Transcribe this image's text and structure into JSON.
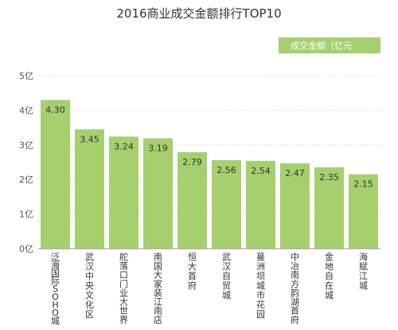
{
  "chart_data": {
    "type": "bar",
    "title": "2016商业成交金额排行TOP10",
    "legend": {
      "label": "成交金额（亿元",
      "position": "top-right"
    },
    "categories": [
      "泛海国际SOHO城",
      "武汉中央文化区",
      "舵落口门业大世界",
      "南国大家装江南店",
      "恒大首府",
      "武汉自贸城",
      "蔓洲坝城市花园",
      "中冶南方韵湖首府",
      "金地自在城",
      "海赋江城"
    ],
    "values": [
      4.3,
      3.45,
      3.24,
      3.19,
      2.79,
      2.56,
      2.54,
      2.47,
      2.35,
      2.15
    ],
    "value_labels": [
      "4.30",
      "3.45",
      "3.24",
      "3.19",
      "2.79",
      "2.56",
      "2.54",
      "2.47",
      "2.35",
      "2.15"
    ],
    "y_ticks": [
      0,
      1,
      2,
      3,
      4,
      5
    ],
    "y_tick_labels": [
      "0亿",
      "1亿",
      "2亿",
      "3亿",
      "4亿",
      "5亿"
    ],
    "ylim": [
      0,
      5
    ],
    "grid": true,
    "colors": {
      "bar": "#a6cf6e",
      "legend_box": "#a6cf6e",
      "grid": "#dddddd",
      "axis": "#999999"
    }
  }
}
